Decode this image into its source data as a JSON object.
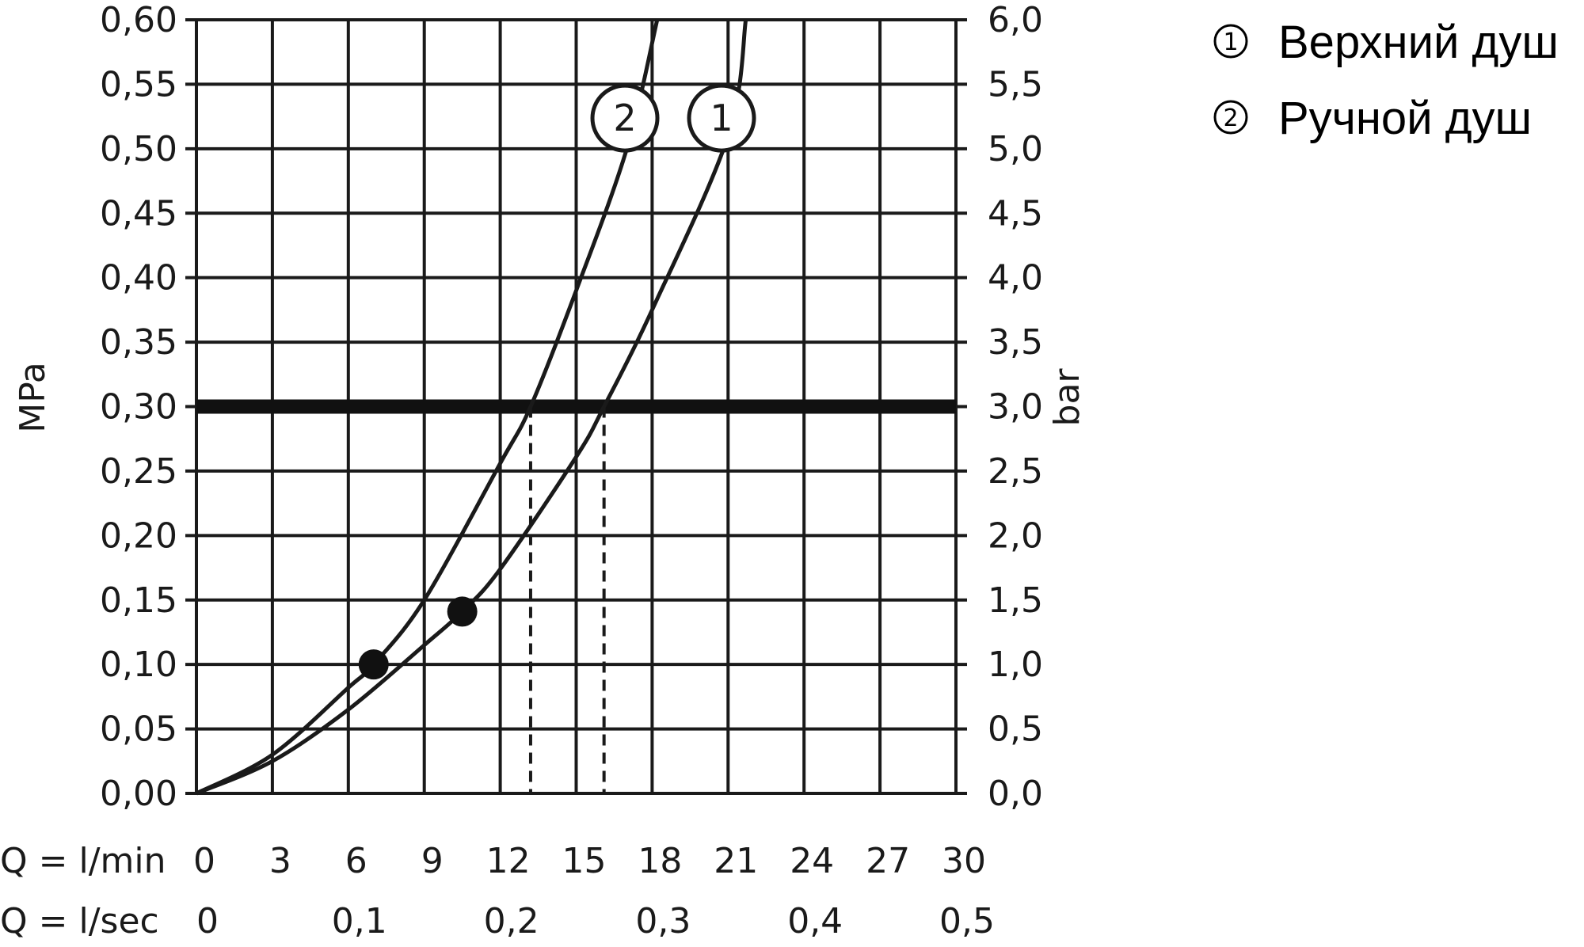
{
  "chart_data": {
    "type": "line",
    "title": "",
    "x_axis": {
      "label_lmin": "Q = l/min",
      "label_lsec": "Q = l/sec",
      "range": [
        0,
        30
      ],
      "ticks_lmin": [
        "0",
        "3",
        "6",
        "9",
        "12",
        "15",
        "18",
        "21",
        "24",
        "27",
        "30"
      ],
      "ticks_lsec": [
        "0",
        "0,1",
        "0,2",
        "0,3",
        "0,4",
        "0,5"
      ]
    },
    "y_axis_left": {
      "label": "MPa",
      "range": [
        0,
        0.6
      ],
      "ticks": [
        "0,00",
        "0,05",
        "0,10",
        "0,15",
        "0,20",
        "0,25",
        "0,30",
        "0,35",
        "0,40",
        "0,45",
        "0,50",
        "0,55",
        "0,60"
      ]
    },
    "y_axis_right": {
      "label": "bar",
      "range": [
        0,
        6
      ],
      "ticks": [
        "0,0",
        "0,5",
        "1,0",
        "1,5",
        "2,0",
        "2,5",
        "3,0",
        "3,5",
        "4,0",
        "4,5",
        "5,0",
        "5,5",
        "6,0"
      ]
    },
    "grid": true,
    "reference_line": {
      "y": 0.3
    },
    "series": [
      {
        "name": "Верхний душ",
        "marker": "1",
        "x": [
          0,
          3,
          6,
          9,
          10.5,
          12,
          15,
          16.1,
          18,
          21,
          21.7
        ],
        "y": [
          0,
          0.025,
          0.065,
          0.115,
          0.141,
          0.174,
          0.261,
          0.3,
          0.375,
          0.51,
          0.6
        ],
        "reference_point": {
          "x": 10.5,
          "y": 0.141
        },
        "flow_at_reference": 16.1
      },
      {
        "name": "Ручной душ",
        "marker": "2",
        "x": [
          0,
          3,
          6,
          7,
          9,
          12,
          13.2,
          15,
          17,
          18.2
        ],
        "y": [
          0,
          0.03,
          0.082,
          0.1,
          0.15,
          0.256,
          0.3,
          0.39,
          0.5,
          0.6
        ],
        "reference_point": {
          "x": 7,
          "y": 0.1
        },
        "flow_at_reference": 13.2
      }
    ],
    "legend": {
      "position": "top-right",
      "items": [
        {
          "marker": "1",
          "label": "Верхний душ"
        },
        {
          "marker": "2",
          "label": "Ручной душ"
        }
      ]
    }
  }
}
